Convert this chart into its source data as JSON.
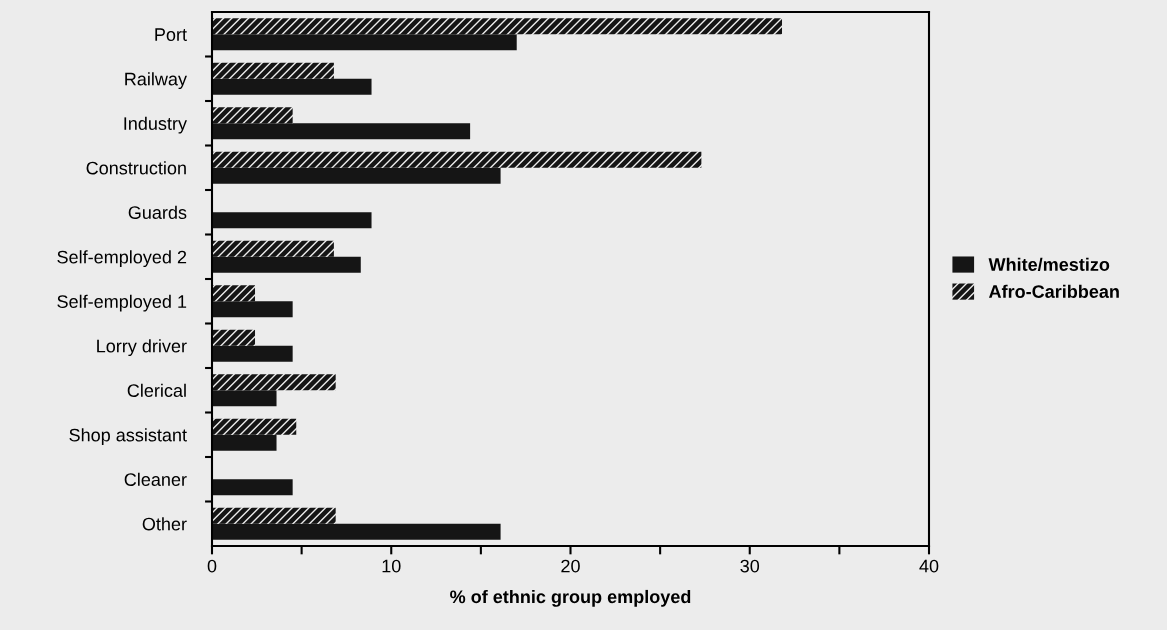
{
  "chart_data": {
    "type": "bar",
    "orientation": "horizontal",
    "xlabel": "% of ethnic group employed",
    "categories": [
      "Port",
      "Railway",
      "Industry",
      "Construction",
      "Guards",
      "Self-employed 2",
      "Self-employed 1",
      "Lorry driver",
      "Clerical",
      "Shop assistant",
      "Cleaner",
      "Other"
    ],
    "series": [
      {
        "name": "White/mestizo",
        "color": "#151515",
        "values": [
          17.0,
          8.9,
          14.4,
          16.1,
          8.9,
          8.3,
          4.5,
          4.5,
          3.6,
          3.6,
          4.5,
          16.1
        ]
      },
      {
        "name": "Afro-Caribbean",
        "color": "#151515",
        "values": [
          31.8,
          6.8,
          4.5,
          27.3,
          null,
          6.8,
          2.4,
          2.4,
          6.9,
          4.7,
          null,
          6.9
        ]
      }
    ],
    "xlim": [
      0,
      40
    ],
    "xticks": [
      0,
      {
        "value": 5,
        "label": null
      },
      10,
      {
        "value": 15,
        "label": null
      },
      20,
      {
        "value": 25,
        "label": null
      },
      30,
      {
        "value": 35,
        "label": null
      },
      40
    ],
    "legend": "right",
    "grid": false
  }
}
